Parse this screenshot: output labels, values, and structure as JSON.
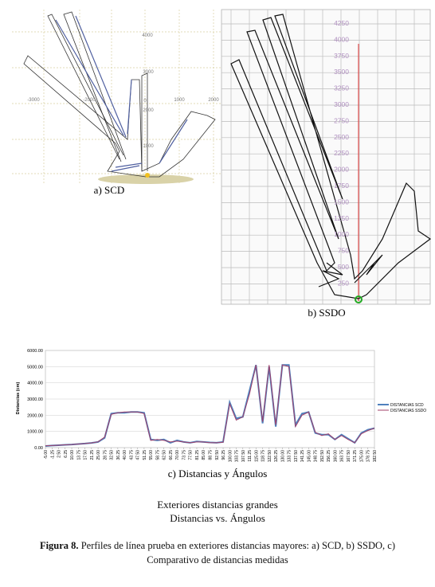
{
  "panel_a": {
    "caption": "a) SCD",
    "tick_labels": [
      "4000",
      "-3000",
      "-2000",
      "0",
      "1000",
      "2000",
      "3000",
      "2000",
      "1000"
    ]
  },
  "panel_b": {
    "caption": "b) SSDO",
    "tick_labels": [
      "4250",
      "4000",
      "3750",
      "3500",
      "3250",
      "3000",
      "2750",
      "2500",
      "2250",
      "2000",
      "1750",
      "1500",
      "1250",
      "1000",
      "750",
      "500",
      "250"
    ]
  },
  "chart_data": {
    "type": "line",
    "caption": "c) Distancias y Ángulos",
    "y_label": "Distancias (cm)",
    "categories": [
      "-5.00",
      "-1.25",
      "2.50",
      "6.25",
      "10.00",
      "13.75",
      "17.50",
      "21.25",
      "25.00",
      "28.75",
      "32.50",
      "36.25",
      "40.00",
      "43.75",
      "47.50",
      "51.25",
      "55.00",
      "58.75",
      "62.50",
      "66.25",
      "70.00",
      "73.75",
      "77.50",
      "81.25",
      "85.00",
      "88.75",
      "92.50",
      "96.25",
      "100.00",
      "103.75",
      "107.50",
      "111.25",
      "115.00",
      "118.75",
      "122.50",
      "126.25",
      "130.00",
      "133.75",
      "137.50",
      "141.25",
      "145.00",
      "148.75",
      "152.50",
      "156.25",
      "160.00",
      "163.75",
      "167.50",
      "171.25",
      "175.00",
      "178.75",
      "182.50"
    ],
    "series": [
      {
        "name": "DISTANCIAS SCD",
        "color": "#4f81bd",
        "values": [
          100,
          130,
          150,
          170,
          190,
          220,
          250,
          290,
          350,
          600,
          2100,
          2150,
          2150,
          2200,
          2200,
          2150,
          500,
          450,
          500,
          300,
          450,
          350,
          300,
          380,
          350,
          320,
          300,
          350,
          2800,
          1800,
          1900,
          3500,
          5100,
          1500,
          5000,
          1300,
          5100,
          5100,
          1400,
          2100,
          2200,
          900,
          800,
          800,
          500,
          800,
          550,
          300,
          900,
          1100,
          1200
        ]
      },
      {
        "name": "DISTANCIAS SSDO",
        "color": "#a0406a",
        "values": [
          110,
          130,
          150,
          170,
          190,
          220,
          250,
          290,
          360,
          650,
          2050,
          2150,
          2200,
          2200,
          2200,
          2100,
          450,
          500,
          450,
          350,
          400,
          350,
          300,
          350,
          350,
          300,
          300,
          330,
          2700,
          1700,
          1900,
          3300,
          5100,
          1600,
          5100,
          1400,
          5100,
          5000,
          1300,
          2000,
          2200,
          950,
          750,
          850,
          500,
          750,
          500,
          300,
          850,
          1050,
          1200
        ]
      }
    ],
    "ylim": [
      0,
      6000
    ],
    "yticks": [
      {
        "value": 0,
        "label": "0.00"
      },
      {
        "value": 1000,
        "label": "1000.00"
      },
      {
        "value": 2000,
        "label": "2000.00"
      },
      {
        "value": 3000,
        "label": "3000.00"
      },
      {
        "value": 4000,
        "label": "4000.00"
      },
      {
        "value": 5000,
        "label": "5000.00"
      },
      {
        "value": 6000,
        "label": "6000.00"
      }
    ],
    "grid": true,
    "legend": "right"
  },
  "heading": [
    "Exteriores distancias grandes",
    "Distancias vs. Ángulos"
  ],
  "caption": {
    "label": "Figura 8.",
    "text": " Perfiles de línea prueba en exteriores distancias mayores: a) SCD, b) SSDO, c) Comparativo de distancias medidas"
  }
}
